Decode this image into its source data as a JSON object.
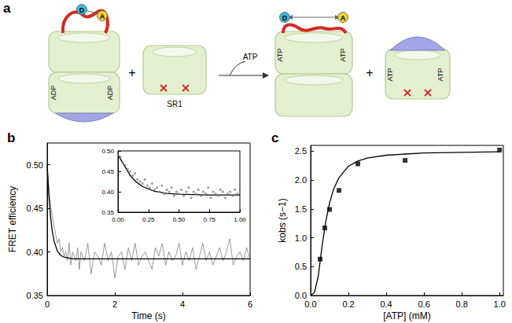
{
  "chart_data": [
    {
      "type": "line",
      "title": "b",
      "xlabel": "Time (s)",
      "ylabel": "FRET efficiency",
      "xlim": [
        0,
        6
      ],
      "ylim": [
        0.35,
        0.525
      ],
      "xticks": [
        0,
        2,
        4,
        6
      ],
      "yticks": [
        0.35,
        {
          "value": 0.4,
          "label": "0.40"
        },
        0.45,
        {
          "value": 0.5,
          "label": "0.50"
        }
      ],
      "series": [
        {
          "type": "line",
          "color": "#808080",
          "x": [
            0,
            0.05,
            0.1,
            0.15,
            0.2,
            0.25,
            0.3,
            0.35,
            0.4,
            0.45,
            0.5,
            0.55,
            0.6,
            0.65,
            0.7,
            0.75,
            0.8,
            0.85,
            0.9,
            0.95,
            1.0,
            1.1,
            1.2,
            1.3,
            1.4,
            1.5,
            1.6,
            1.7,
            1.8,
            1.9,
            2.0,
            2.1,
            2.2,
            2.3,
            2.4,
            2.5,
            2.6,
            2.7,
            2.8,
            2.9,
            3.0,
            3.1,
            3.2,
            3.3,
            3.4,
            3.5,
            3.6,
            3.7,
            3.8,
            3.9,
            4.0,
            4.1,
            4.2,
            4.3,
            4.4,
            4.5,
            4.6,
            4.7,
            4.8,
            4.9,
            5.0,
            5.1,
            5.2,
            5.3,
            5.4,
            5.5,
            5.6,
            5.7,
            5.8,
            5.9,
            6.0
          ],
          "values": [
            0.5,
            0.47,
            0.455,
            0.44,
            0.43,
            0.42,
            0.41,
            0.415,
            0.4,
            0.405,
            0.395,
            0.4,
            0.39,
            0.41,
            0.385,
            0.4,
            0.395,
            0.39,
            0.405,
            0.38,
            0.4,
            0.39,
            0.41,
            0.375,
            0.4,
            0.395,
            0.385,
            0.41,
            0.39,
            0.4,
            0.37,
            0.395,
            0.4,
            0.38,
            0.405,
            0.39,
            0.41,
            0.385,
            0.395,
            0.4,
            0.39,
            0.38,
            0.405,
            0.395,
            0.41,
            0.385,
            0.4,
            0.39,
            0.395,
            0.41,
            0.385,
            0.4,
            0.39,
            0.405,
            0.38,
            0.395,
            0.41,
            0.39,
            0.4,
            0.385,
            0.395,
            0.405,
            0.39,
            0.4,
            0.415,
            0.385,
            0.395,
            0.4,
            0.39,
            0.405,
            0.39
          ]
        },
        {
          "type": "line",
          "color": "#000000",
          "x": [
            0,
            0.05,
            0.1,
            0.15,
            0.2,
            0.3,
            0.4,
            0.5,
            0.75,
            1,
            2,
            4,
            6
          ],
          "values": [
            0.5,
            0.465,
            0.44,
            0.424,
            0.413,
            0.401,
            0.396,
            0.394,
            0.392,
            0.392,
            0.392,
            0.392,
            0.392
          ]
        }
      ]
    },
    {
      "type": "scatter",
      "xlim": [
        0,
        1
      ],
      "ylim": [
        0.35,
        0.5
      ],
      "xticks": [
        {
          "value": 0,
          "label": "0.00"
        },
        0.25,
        {
          "value": 0.5,
          "label": "0.50"
        },
        0.75,
        {
          "value": 1,
          "label": "1.00"
        }
      ],
      "yticks": [
        0.35,
        {
          "value": 0.4,
          "label": "0.40"
        },
        0.45,
        {
          "value": 0.5,
          "label": "0.50"
        }
      ],
      "series": [
        {
          "type": "scatter",
          "color": "#808080",
          "marker": "circle",
          "x": [
            0,
            0.02,
            0.04,
            0.06,
            0.08,
            0.1,
            0.12,
            0.14,
            0.16,
            0.18,
            0.2,
            0.22,
            0.24,
            0.26,
            0.28,
            0.3,
            0.32,
            0.34,
            0.36,
            0.38,
            0.4,
            0.42,
            0.44,
            0.46,
            0.48,
            0.5,
            0.52,
            0.54,
            0.56,
            0.58,
            0.6,
            0.62,
            0.64,
            0.66,
            0.68,
            0.7,
            0.72,
            0.74,
            0.76,
            0.78,
            0.8,
            0.82,
            0.84,
            0.86,
            0.88,
            0.9,
            0.92,
            0.94,
            0.96,
            0.98,
            1.0
          ],
          "values": [
            0.49,
            0.485,
            0.47,
            0.465,
            0.455,
            0.45,
            0.44,
            0.445,
            0.43,
            0.425,
            0.42,
            0.43,
            0.415,
            0.41,
            0.42,
            0.405,
            0.41,
            0.4,
            0.415,
            0.395,
            0.405,
            0.4,
            0.41,
            0.39,
            0.4,
            0.395,
            0.405,
            0.39,
            0.4,
            0.41,
            0.385,
            0.4,
            0.395,
            0.405,
            0.39,
            0.4,
            0.395,
            0.41,
            0.385,
            0.4,
            0.395,
            0.39,
            0.405,
            0.4,
            0.385,
            0.395,
            0.4,
            0.39,
            0.405,
            0.395,
            0.4
          ]
        },
        {
          "type": "line",
          "color": "#000000",
          "x": [
            0,
            0.05,
            0.1,
            0.15,
            0.2,
            0.3,
            0.4,
            0.5,
            0.75,
            1
          ],
          "values": [
            0.49,
            0.465,
            0.44,
            0.424,
            0.413,
            0.401,
            0.396,
            0.394,
            0.392,
            0.392
          ]
        }
      ]
    },
    {
      "type": "scatter",
      "title": "c",
      "xlabel": "[ATP] (mM)",
      "ylabel": "kobs (s−1)",
      "xlim": [
        0,
        1.02
      ],
      "ylim": [
        0,
        2.6
      ],
      "xticks": [
        {
          "value": 0,
          "label": "0.0"
        },
        0.2,
        0.4,
        0.6,
        0.8,
        {
          "value": 1,
          "label": "1.0"
        }
      ],
      "yticks": [
        {
          "value": 0,
          "label": "0.0"
        },
        0.5,
        {
          "value": 1,
          "label": "1.0"
        },
        1.5,
        {
          "value": 2,
          "label": "2.0"
        },
        2.5
      ],
      "series": [
        {
          "type": "scatter",
          "color": "#000000",
          "marker": "square",
          "x": [
            0.05,
            0.075,
            0.1,
            0.15,
            0.25,
            0.5,
            1.0
          ],
          "values": [
            0.63,
            1.17,
            1.49,
            1.82,
            2.28,
            2.34,
            2.52
          ]
        },
        {
          "type": "line",
          "color": "#000000",
          "x": [
            0,
            0.02,
            0.04,
            0.06,
            0.08,
            0.1,
            0.12,
            0.15,
            0.2,
            0.25,
            0.3,
            0.4,
            0.5,
            0.6,
            0.8,
            1.0
          ],
          "values": [
            0,
            0.05,
            0.33,
            0.85,
            1.28,
            1.6,
            1.83,
            2.04,
            2.24,
            2.33,
            2.38,
            2.43,
            2.45,
            2.47,
            2.48,
            2.49
          ]
        }
      ]
    }
  ],
  "diagram": {
    "panel": "a",
    "reactant_1": {
      "labels": [
        "ADP",
        "ADP"
      ],
      "donor": "D",
      "acceptor": "A"
    },
    "plus": "+",
    "reactant_2": {
      "label": "SR1"
    },
    "arrow_label": "ATP",
    "product_1": {
      "labels": [
        "ATP",
        "ATP"
      ],
      "donor": "D",
      "acceptor": "A"
    },
    "product_2": {
      "labels": [
        "ATP",
        "ATP"
      ]
    }
  }
}
